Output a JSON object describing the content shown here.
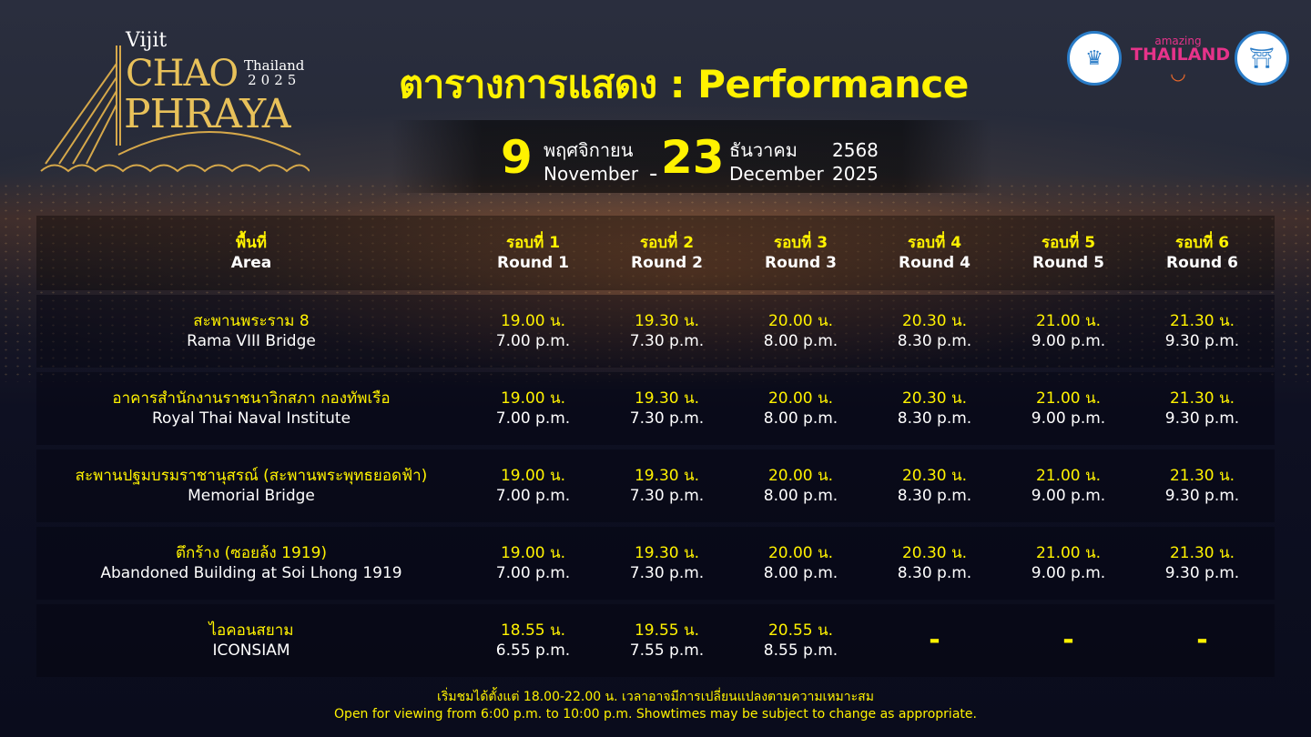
{
  "logo": {
    "vijit": "Vijit",
    "chao": "CHAO",
    "thailand": "Thailand",
    "year": "2025",
    "phraya": "PHRAYA"
  },
  "title": "ตารางการแสดง : Performance",
  "dates": {
    "start_day": "9",
    "start_month_th": "พฤศจิกายน",
    "start_month_en": "November",
    "separator": "-",
    "end_day": "23",
    "end_month_th": "ธันวาคม",
    "end_year_th": "2568",
    "end_month_en": "December",
    "end_year_en": "2025"
  },
  "partner_logos": {
    "amazing": "amazing",
    "thailand": "THAILAND"
  },
  "table": {
    "header": {
      "area_th": "พื้นที่",
      "area_en": "Area",
      "rounds": [
        {
          "th": "รอบที่ 1",
          "en": "Round 1"
        },
        {
          "th": "รอบที่ 2",
          "en": "Round 2"
        },
        {
          "th": "รอบที่ 3",
          "en": "Round 3"
        },
        {
          "th": "รอบที่ 4",
          "en": "Round 4"
        },
        {
          "th": "รอบที่ 5",
          "en": "Round 5"
        },
        {
          "th": "รอบที่ 6",
          "en": "Round 6"
        }
      ]
    },
    "rows": [
      {
        "th": "สะพานพระราม 8",
        "en": "Rama VIII Bridge",
        "times": [
          [
            "19.00 น.",
            "7.00 p.m."
          ],
          [
            "19.30 น.",
            "7.30 p.m."
          ],
          [
            "20.00 น.",
            "8.00 p.m."
          ],
          [
            "20.30 น.",
            "8.30 p.m."
          ],
          [
            "21.00 น.",
            "9.00 p.m."
          ],
          [
            "21.30 น.",
            "9.30 p.m."
          ]
        ]
      },
      {
        "th": "อาคารสำนักงานราชนาวิกสภา กองทัพเรือ",
        "en": "Royal Thai Naval Institute",
        "times": [
          [
            "19.00 น.",
            "7.00 p.m."
          ],
          [
            "19.30 น.",
            "7.30 p.m."
          ],
          [
            "20.00 น.",
            "8.00 p.m."
          ],
          [
            "20.30 น.",
            "8.30 p.m."
          ],
          [
            "21.00 น.",
            "9.00 p.m."
          ],
          [
            "21.30 น.",
            "9.30 p.m."
          ]
        ]
      },
      {
        "th": "สะพานปฐมบรมราชานุสรณ์ (สะพานพระพุทธยอดฟ้า)",
        "en": "Memorial Bridge",
        "times": [
          [
            "19.00 น.",
            "7.00 p.m."
          ],
          [
            "19.30 น.",
            "7.30 p.m."
          ],
          [
            "20.00 น.",
            "8.00 p.m."
          ],
          [
            "20.30 น.",
            "8.30 p.m."
          ],
          [
            "21.00 น.",
            "9.00 p.m."
          ],
          [
            "21.30 น.",
            "9.30 p.m."
          ]
        ]
      },
      {
        "th": "ตึกร้าง (ซอยล้ง 1919)",
        "en": "Abandoned Building at Soi Lhong 1919",
        "times": [
          [
            "19.00 น.",
            "7.00 p.m."
          ],
          [
            "19.30 น.",
            "7.30 p.m."
          ],
          [
            "20.00 น.",
            "8.00 p.m."
          ],
          [
            "20.30 น.",
            "8.30 p.m."
          ],
          [
            "21.00 น.",
            "9.00 p.m."
          ],
          [
            "21.30 น.",
            "9.30 p.m."
          ]
        ]
      },
      {
        "th": "ไอคอนสยาม",
        "en": "ICONSIAM",
        "times": [
          [
            "18.55 น.",
            "6.55 p.m."
          ],
          [
            "19.55 น.",
            "7.55 p.m."
          ],
          [
            "20.55 น.",
            "8.55 p.m."
          ],
          [
            "-",
            ""
          ],
          [
            "-",
            ""
          ],
          [
            "-",
            ""
          ]
        ]
      }
    ]
  },
  "footer": {
    "th": "เริ่มชมได้ตั้งแต่ 18.00-22.00 น. เวลาอาจมีการเปลี่ยนแปลงตามความเหมาะสม",
    "en": "Open for viewing from 6:00 p.m. to 10:00 p.m. Showtimes may be subject to change as appropriate."
  }
}
